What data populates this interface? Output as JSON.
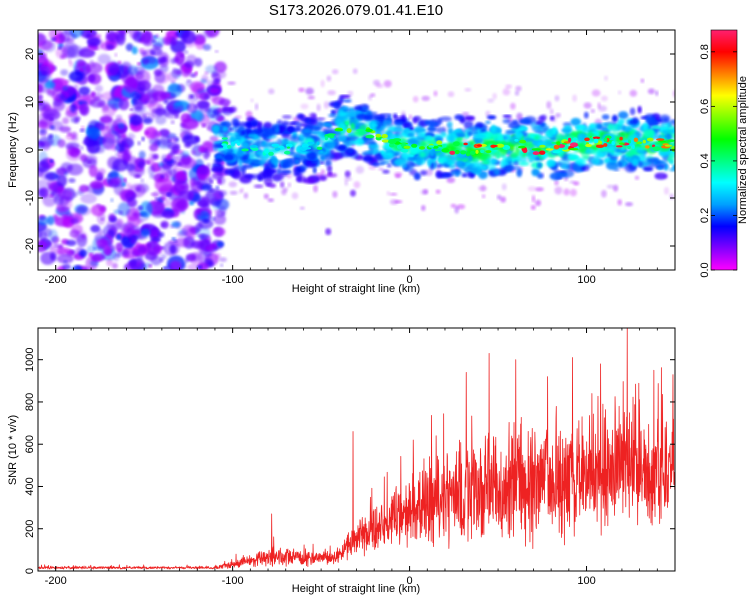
{
  "figure": {
    "title": "S173.2026.079.01.41.E10"
  },
  "chart_data": [
    {
      "type": "heatmap",
      "name": "spectrogram",
      "title": "S173.2026.079.01.41.E10",
      "xlabel": "Height of straight line (km)",
      "ylabel": "Frequency (Hz)",
      "xlim": [
        -210,
        150
      ],
      "ylim": [
        -25,
        25
      ],
      "xticks": [
        -200,
        -100,
        0,
        100
      ],
      "yticks": [
        -20,
        -10,
        0,
        10,
        20
      ],
      "colorbar": {
        "label": "Normalized spectral amplitude",
        "range": [
          0,
          0.88
        ],
        "ticks": [
          0.0,
          0.2,
          0.4,
          0.6,
          0.8
        ],
        "colormap": [
          "#ff00ff",
          "#8000ff",
          "#0000ff",
          "#00a0ff",
          "#00ffff",
          "#00ff80",
          "#00ff00",
          "#80ff00",
          "#ffff00",
          "#ff8000",
          "#ff0000",
          "#ff2070"
        ]
      },
      "noise_region_x": [
        -210,
        -105
      ],
      "signal_band": [
        {
          "x": -108,
          "f": 2
        },
        {
          "x": -90,
          "f": 0
        },
        {
          "x": -70,
          "f": 0.5
        },
        {
          "x": -50,
          "f": 1
        },
        {
          "x": -38,
          "f": 5
        },
        {
          "x": -25,
          "f": 4
        },
        {
          "x": -10,
          "f": 1.5
        },
        {
          "x": 0,
          "f": 0.5
        },
        {
          "x": 20,
          "f": 0.5
        },
        {
          "x": 40,
          "f": 0
        },
        {
          "x": 60,
          "f": 1
        },
        {
          "x": 75,
          "f": 0
        },
        {
          "x": 90,
          "f": 1
        },
        {
          "x": 110,
          "f": 2
        },
        {
          "x": 130,
          "f": 1.5
        },
        {
          "x": 150,
          "f": 1
        }
      ],
      "outliers": [
        {
          "x": -46,
          "f": -17
        },
        {
          "x": -32,
          "f": -9
        },
        {
          "x": -35,
          "f": -5
        }
      ]
    },
    {
      "type": "line",
      "name": "snr",
      "xlabel": "Height of straight line (km)",
      "ylabel": "SNR (10 * v/v)",
      "xlim": [
        -210,
        150
      ],
      "ylim": [
        0,
        1150
      ],
      "xticks": [
        -200,
        -100,
        0,
        100
      ],
      "yticks": [
        0,
        200,
        400,
        600,
        800,
        1000
      ],
      "color": "#ee2222",
      "envelope": [
        {
          "x": -210,
          "base": 15,
          "amp": 12
        },
        {
          "x": -110,
          "base": 15,
          "amp": 12
        },
        {
          "x": -100,
          "base": 30,
          "amp": 30
        },
        {
          "x": -80,
          "base": 60,
          "amp": 80
        },
        {
          "x": -60,
          "base": 60,
          "amp": 70
        },
        {
          "x": -40,
          "base": 60,
          "amp": 60
        },
        {
          "x": -30,
          "base": 150,
          "amp": 160
        },
        {
          "x": -10,
          "base": 220,
          "amp": 220
        },
        {
          "x": 0,
          "base": 280,
          "amp": 300
        },
        {
          "x": 20,
          "base": 330,
          "amp": 420
        },
        {
          "x": 40,
          "base": 360,
          "amp": 500
        },
        {
          "x": 60,
          "base": 380,
          "amp": 520
        },
        {
          "x": 80,
          "base": 400,
          "amp": 500
        },
        {
          "x": 100,
          "base": 420,
          "amp": 520
        },
        {
          "x": 120,
          "base": 440,
          "amp": 500
        },
        {
          "x": 150,
          "base": 450,
          "amp": 480
        }
      ],
      "peaks": [
        {
          "x": -98,
          "y": 80
        },
        {
          "x": -78,
          "y": 270
        },
        {
          "x": -32,
          "y": 660
        },
        {
          "x": 2,
          "y": 620
        },
        {
          "x": 15,
          "y": 640
        },
        {
          "x": 32,
          "y": 940
        },
        {
          "x": 45,
          "y": 1030
        },
        {
          "x": 60,
          "y": 1000
        },
        {
          "x": 78,
          "y": 920
        },
        {
          "x": 92,
          "y": 1010
        },
        {
          "x": 108,
          "y": 980
        },
        {
          "x": 123,
          "y": 1150
        },
        {
          "x": 138,
          "y": 950
        }
      ]
    }
  ]
}
